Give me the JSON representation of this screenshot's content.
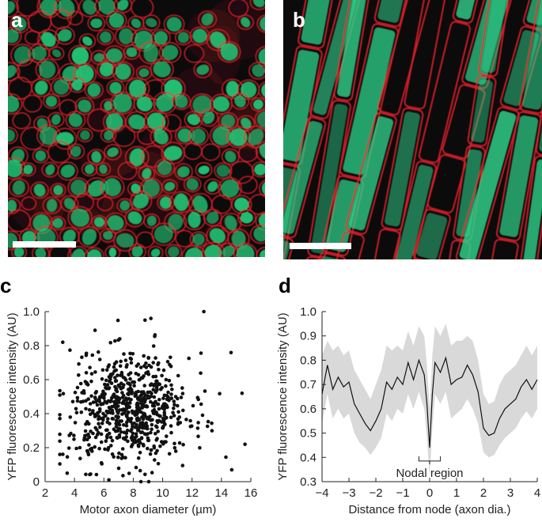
{
  "panels": {
    "a": {
      "letter": "a",
      "description_colors": {
        "membrane": "#e0202a",
        "axon": "#22c878",
        "background": "#0b0b0b"
      }
    },
    "b": {
      "letter": "b",
      "description_colors": {
        "membrane": "#e0202a",
        "axon": "#2fd08a",
        "background": "#0b0b0b"
      }
    },
    "c": {
      "letter": "c"
    },
    "d": {
      "letter": "d",
      "annotation": "Nodal region"
    }
  },
  "chart_data": [
    {
      "panel": "c",
      "type": "scatter",
      "xlabel": "Motor axon diameter (µm)",
      "ylabel": "YFP fluorescence intensity (AU)",
      "xlim": [
        2,
        16
      ],
      "ylim": [
        0,
        1.0
      ],
      "xticks": [
        "2",
        "4",
        "6",
        "8",
        "10",
        "12",
        "14",
        "16"
      ],
      "yticks": [
        "0",
        "0.2",
        "0.4",
        "0.6",
        "0.8",
        "1.0"
      ],
      "marker_color": "#111111",
      "n_points": 700,
      "distribution": {
        "x_mean": 7.8,
        "x_sd": 2.4,
        "y_mean": 0.42,
        "y_sd": 0.16
      },
      "sample_points": [
        [
          12.8,
          1.0
        ],
        [
          9.2,
          0.96
        ],
        [
          8.8,
          0.95
        ],
        [
          5.4,
          0.89
        ],
        [
          3.2,
          0.82
        ],
        [
          15.6,
          0.22
        ],
        [
          14.7,
          0.07
        ],
        [
          3.5,
          0.05
        ],
        [
          3.0,
          0.16
        ],
        [
          15.4,
          0.52
        ]
      ]
    },
    {
      "panel": "d",
      "type": "line",
      "xlabel": "Distance from node (axon dia.)",
      "ylabel": "YFP fluorescence intensity (AU)",
      "xlim": [
        -4,
        4
      ],
      "ylim": [
        0.3,
        1.0
      ],
      "xticks": [
        "−4",
        "−3",
        "−2",
        "−1",
        "0",
        "1",
        "2",
        "3",
        "4"
      ],
      "yticks": [
        "0.3",
        "0.4",
        "0.5",
        "0.6",
        "0.7",
        "0.8",
        "0.9",
        "1.0"
      ],
      "line_color": "#111111",
      "band_color": "#d9d9d9",
      "x": [
        -4.0,
        -3.8,
        -3.6,
        -3.4,
        -3.2,
        -3.0,
        -2.8,
        -2.6,
        -2.4,
        -2.2,
        -2.0,
        -1.8,
        -1.6,
        -1.4,
        -1.2,
        -1.0,
        -0.8,
        -0.6,
        -0.4,
        -0.2,
        -0.1,
        0.0,
        0.1,
        0.2,
        0.4,
        0.6,
        0.8,
        1.0,
        1.2,
        1.4,
        1.6,
        1.8,
        2.0,
        2.2,
        2.4,
        2.6,
        2.8,
        3.0,
        3.2,
        3.4,
        3.6,
        3.8,
        4.0
      ],
      "mean": [
        0.66,
        0.78,
        0.68,
        0.73,
        0.69,
        0.71,
        0.62,
        0.58,
        0.54,
        0.51,
        0.55,
        0.6,
        0.71,
        0.68,
        0.73,
        0.7,
        0.79,
        0.72,
        0.8,
        0.74,
        0.62,
        0.44,
        0.66,
        0.79,
        0.75,
        0.81,
        0.7,
        0.72,
        0.73,
        0.78,
        0.74,
        0.67,
        0.52,
        0.49,
        0.5,
        0.56,
        0.6,
        0.62,
        0.64,
        0.69,
        0.72,
        0.68,
        0.72
      ],
      "upper": [
        0.82,
        0.88,
        0.84,
        0.86,
        0.82,
        0.84,
        0.76,
        0.72,
        0.68,
        0.64,
        0.7,
        0.76,
        0.86,
        0.84,
        0.86,
        0.84,
        0.92,
        0.86,
        0.94,
        0.9,
        0.78,
        0.6,
        0.82,
        0.94,
        0.9,
        0.95,
        0.86,
        0.88,
        0.88,
        0.9,
        0.88,
        0.8,
        0.66,
        0.62,
        0.63,
        0.7,
        0.74,
        0.76,
        0.78,
        0.82,
        0.86,
        0.82,
        0.86
      ],
      "lower": [
        0.54,
        0.66,
        0.56,
        0.6,
        0.56,
        0.58,
        0.5,
        0.46,
        0.44,
        0.41,
        0.44,
        0.48,
        0.58,
        0.55,
        0.6,
        0.58,
        0.66,
        0.6,
        0.67,
        0.6,
        0.48,
        0.32,
        0.52,
        0.66,
        0.62,
        0.67,
        0.56,
        0.58,
        0.6,
        0.64,
        0.6,
        0.54,
        0.42,
        0.4,
        0.41,
        0.45,
        0.48,
        0.5,
        0.52,
        0.56,
        0.59,
        0.56,
        0.6
      ],
      "annotation_bracket": {
        "x0": -0.4,
        "x1": 0.4
      }
    }
  ],
  "scale_bars": [
    {
      "panel": "a"
    },
    {
      "panel": "b"
    }
  ]
}
